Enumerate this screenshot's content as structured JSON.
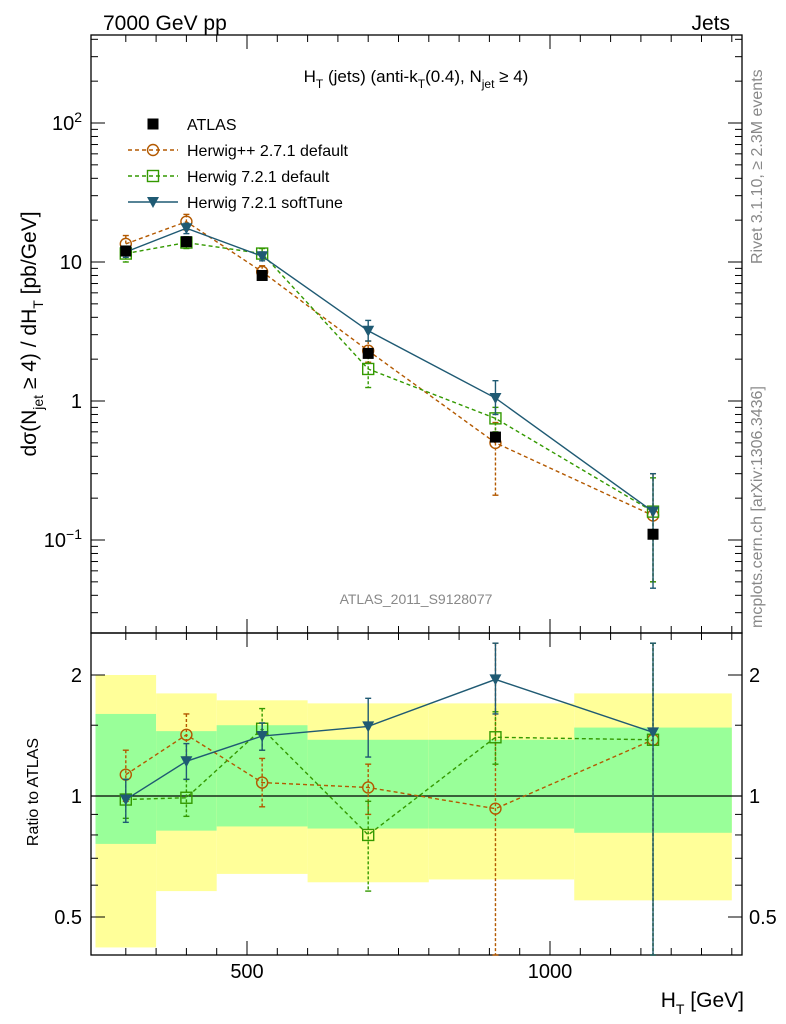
{
  "header": {
    "left": "7000 GeV pp",
    "right": "Jets"
  },
  "side_labels": {
    "rivet": "Rivet 3.1.10, ≥ 2.3M events",
    "mcplots": "mcplots.cern.ch [arXiv:1306.3436]"
  },
  "analysis_id": "ATLAS_2011_S9128077",
  "chart_data": [
    {
      "type": "line",
      "title": "H_T (jets) (anti-k_T(0.4), N_jet ≥ 4)",
      "xlabel": "H_T [GeV]",
      "ylabel": "dσ(N_jet ≥ 4) / dH_T [pb/GeV]",
      "xlim": [
        240,
        1320
      ],
      "ylim": [
        0.025,
        500
      ],
      "yscale": "log",
      "y_tick_labels": [
        "10⁻¹",
        "1",
        "10",
        "10²"
      ],
      "legend_position": "top-left",
      "bins": [
        [
          250,
          350
        ],
        [
          350,
          450
        ],
        [
          450,
          600
        ],
        [
          600,
          800
        ],
        [
          800,
          1040
        ],
        [
          1040,
          1300
        ]
      ],
      "x": [
        300,
        400,
        525,
        700,
        910,
        1170
      ],
      "series": [
        {
          "name": "ATLAS",
          "color": "#000000",
          "marker": "square-filled",
          "values": [
            12,
            14,
            8,
            2.2,
            0.55,
            0.11
          ]
        },
        {
          "name": "Herwig++ 2.7.1 default",
          "color": "#b35900",
          "marker": "circle-open",
          "dash": "dashed",
          "values": [
            13.5,
            19.5,
            8.5,
            2.3,
            0.5,
            0.15
          ],
          "err_low": [
            11.5,
            17,
            7.6,
            1.9,
            0.21,
            0.05
          ],
          "err_high": [
            15.5,
            22,
            9.4,
            2.7,
            0.7,
            0.3
          ]
        },
        {
          "name": "Herwig 7.2.1 default",
          "color": "#339900",
          "marker": "square-open",
          "dash": "dashed",
          "values": [
            11.5,
            13.8,
            11.5,
            1.7,
            0.75,
            0.16
          ],
          "err_low": [
            10,
            12.5,
            10.5,
            1.25,
            0.6,
            0.05
          ],
          "err_high": [
            13,
            15.2,
            12.5,
            2.1,
            0.9,
            0.28
          ]
        },
        {
          "name": "Herwig 7.2.1 softTune",
          "color": "#1f5a73",
          "marker": "triangle-down-filled",
          "dash": "solid",
          "values": [
            11.8,
            17.5,
            11,
            3.2,
            1.05,
            0.16
          ],
          "err_low": [
            10.8,
            16,
            10.2,
            2.7,
            0.8,
            0.045
          ],
          "err_high": [
            12.8,
            19,
            11.8,
            3.8,
            1.4,
            0.3
          ]
        }
      ]
    },
    {
      "type": "line",
      "title": "",
      "xlabel": "H_T [GeV]",
      "ylabel": "Ratio to ATLAS",
      "ylim": [
        0.4,
        2.4
      ],
      "yscale": "log",
      "x_tick_labels": [
        "500",
        "1000"
      ],
      "y_tick_labels": [
        "0.5",
        "1",
        "2"
      ],
      "bins": [
        [
          250,
          350
        ],
        [
          350,
          450
        ],
        [
          450,
          600
        ],
        [
          600,
          800
        ],
        [
          800,
          1040
        ],
        [
          1040,
          1300
        ]
      ],
      "x": [
        300,
        400,
        525,
        700,
        910,
        1170
      ],
      "bands": [
        {
          "name": "inner",
          "color": "#99ff99",
          "low": [
            0.76,
            0.82,
            0.84,
            0.83,
            0.83,
            0.81
          ],
          "high": [
            1.6,
            1.45,
            1.5,
            1.38,
            1.38,
            1.48
          ]
        },
        {
          "name": "outer",
          "color": "#ffff99",
          "low": [
            0.42,
            0.58,
            0.64,
            0.61,
            0.62,
            0.55
          ],
          "high": [
            2.0,
            1.8,
            1.73,
            1.7,
            1.7,
            1.8
          ]
        }
      ],
      "reference_line": 1,
      "series": [
        {
          "name": "Herwig++ 2.7.1 default",
          "color": "#b35900",
          "marker": "circle-open",
          "dash": "dashed",
          "values": [
            1.13,
            1.42,
            1.08,
            1.05,
            0.93,
            1.38
          ],
          "err_low": [
            0.97,
            1.25,
            0.94,
            0.9,
            0.38,
            0.38
          ],
          "err_high": [
            1.3,
            1.6,
            1.24,
            1.2,
            2.4,
            2.4
          ]
        },
        {
          "name": "Herwig 7.2.1 default",
          "color": "#339900",
          "marker": "square-open",
          "dash": "dashed",
          "values": [
            0.98,
            0.99,
            1.47,
            0.8,
            1.4,
            1.38
          ],
          "err_low": [
            0.88,
            0.89,
            1.3,
            0.58,
            1.2,
            0.38
          ],
          "err_high": [
            1.1,
            1.1,
            1.65,
            0.97,
            1.62,
            2.4
          ]
        },
        {
          "name": "Herwig 7.2.1 softTune",
          "color": "#1f5a73",
          "marker": "triangle-down-filled",
          "dash": "solid",
          "values": [
            0.98,
            1.22,
            1.41,
            1.49,
            1.95,
            1.44
          ],
          "err_low": [
            0.86,
            1.1,
            1.3,
            1.25,
            1.6,
            0.38
          ],
          "err_high": [
            1.1,
            1.35,
            1.52,
            1.75,
            2.4,
            2.4
          ]
        }
      ]
    }
  ]
}
